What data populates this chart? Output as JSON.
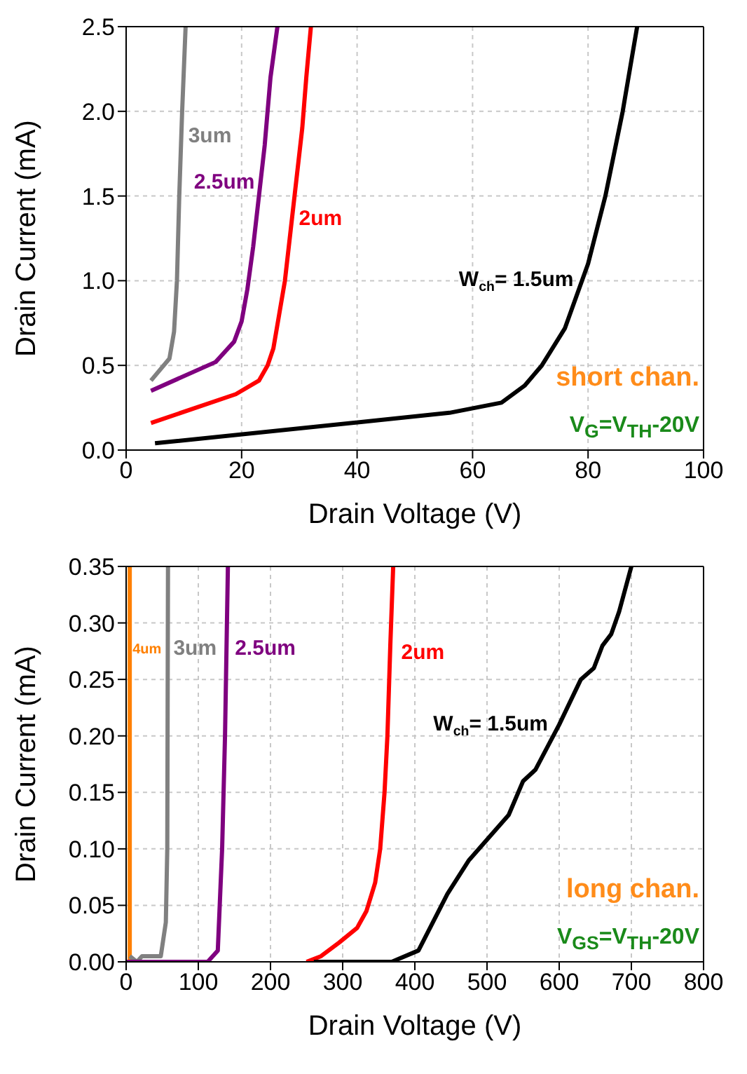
{
  "chart_data": [
    {
      "type": "line",
      "xlabel": "Drain Voltage (V)",
      "ylabel": "Drain Current (mA)",
      "xlim": [
        0,
        100
      ],
      "xticks": [
        0,
        20,
        40,
        60,
        80,
        100
      ],
      "ylim": [
        0,
        2.5
      ],
      "yticks": [
        {
          "value": 0,
          "label": "0.0"
        },
        {
          "value": 0.5,
          "label": "0.5"
        },
        {
          "value": 1,
          "label": "1.0"
        },
        {
          "value": 1.5,
          "label": "1.5"
        },
        {
          "value": 2,
          "label": "2.0"
        },
        {
          "value": 2.5,
          "label": "2.5"
        }
      ],
      "grid": true,
      "marker": "none",
      "line_style": "solid",
      "series": [
        {
          "name": "3um",
          "color": "#808080",
          "x": [
            4.3,
            7.5,
            8.3,
            8.8,
            9.2,
            9.7,
            10.3
          ],
          "values": [
            0.41,
            0.54,
            0.7,
            1.0,
            1.5,
            2.0,
            2.5
          ]
        },
        {
          "name": "2.5um",
          "color": "#7f007f",
          "x": [
            4.3,
            15.5,
            18.7,
            20,
            21,
            22,
            23,
            24,
            25,
            26.2
          ],
          "values": [
            0.35,
            0.52,
            0.64,
            0.76,
            0.95,
            1.2,
            1.5,
            1.8,
            2.2,
            2.5
          ]
        },
        {
          "name": "2um",
          "color": "#ff0000",
          "x": [
            4.3,
            19,
            23,
            24.5,
            25.5,
            26.5,
            27.5,
            28.5,
            29.5,
            30.5,
            31.2,
            32
          ],
          "values": [
            0.16,
            0.33,
            0.41,
            0.5,
            0.6,
            0.8,
            1.0,
            1.3,
            1.6,
            1.9,
            2.2,
            2.5
          ]
        },
        {
          "name": "W$_{ch}$= 1.5um",
          "color": "#000000",
          "x": [
            5,
            56,
            65,
            69,
            72,
            76,
            80,
            83,
            86,
            88.5
          ],
          "values": [
            0.04,
            0.22,
            0.28,
            0.38,
            0.5,
            0.72,
            1.1,
            1.5,
            2.0,
            2.5
          ]
        }
      ],
      "annotations": [
        "short chan.",
        "V$_{G}$=V$_{TH}$-20V"
      ]
    },
    {
      "type": "line",
      "xlabel": "Drain Voltage (V)",
      "ylabel": "Drain Current (mA)",
      "xlim": [
        0,
        800
      ],
      "xticks": [
        0,
        100,
        200,
        300,
        400,
        500,
        600,
        700,
        800
      ],
      "ylim": [
        0,
        0.35
      ],
      "yticks": [
        {
          "value": 0,
          "label": "0.00"
        },
        {
          "value": 0.05,
          "label": "0.05"
        },
        {
          "value": 0.1,
          "label": "0.10"
        },
        {
          "value": 0.15,
          "label": "0.15"
        },
        {
          "value": 0.2,
          "label": "0.20"
        },
        {
          "value": 0.25,
          "label": "0.25"
        },
        {
          "value": 0.3,
          "label": "0.30"
        },
        {
          "value": 0.35,
          "label": "0.35"
        }
      ],
      "grid": true,
      "marker": "none",
      "line_style": "solid",
      "series": [
        {
          "name": "4um",
          "color": "#ff8000",
          "x": [
            5,
            5
          ],
          "values": [
            0,
            0.35
          ]
        },
        {
          "name": "3um",
          "color": "#808080",
          "x": [
            5,
            15,
            22,
            48,
            55,
            57,
            58
          ],
          "values": [
            0.005,
            0,
            0.005,
            0.005,
            0.035,
            0.1,
            0.35
          ]
        },
        {
          "name": "2.5um",
          "color": "#7f007f",
          "x": [
            0,
            113,
            127,
            133,
            137,
            141
          ],
          "values": [
            0,
            0,
            0.01,
            0.1,
            0.2,
            0.35
          ]
        },
        {
          "name": "2um",
          "color": "#ff0000",
          "x": [
            250,
            270,
            295,
            320,
            333,
            345,
            352,
            358,
            362,
            366,
            370
          ],
          "values": [
            0,
            0.005,
            0.017,
            0.03,
            0.045,
            0.07,
            0.1,
            0.15,
            0.2,
            0.28,
            0.35
          ]
        },
        {
          "name": "W$_{ch}$= 1.5um",
          "color": "#000000",
          "x": [
            260,
            368,
            405,
            445,
            475,
            530,
            550,
            567,
            600,
            630,
            648,
            660,
            672,
            683,
            700
          ],
          "values": [
            0,
            0,
            0.01,
            0.06,
            0.09,
            0.13,
            0.16,
            0.17,
            0.21,
            0.25,
            0.26,
            0.28,
            0.29,
            0.31,
            0.35
          ]
        }
      ],
      "annotations": [
        "long chan.",
        "V$_{GS}$=V$_{TH}$-20V"
      ]
    }
  ]
}
